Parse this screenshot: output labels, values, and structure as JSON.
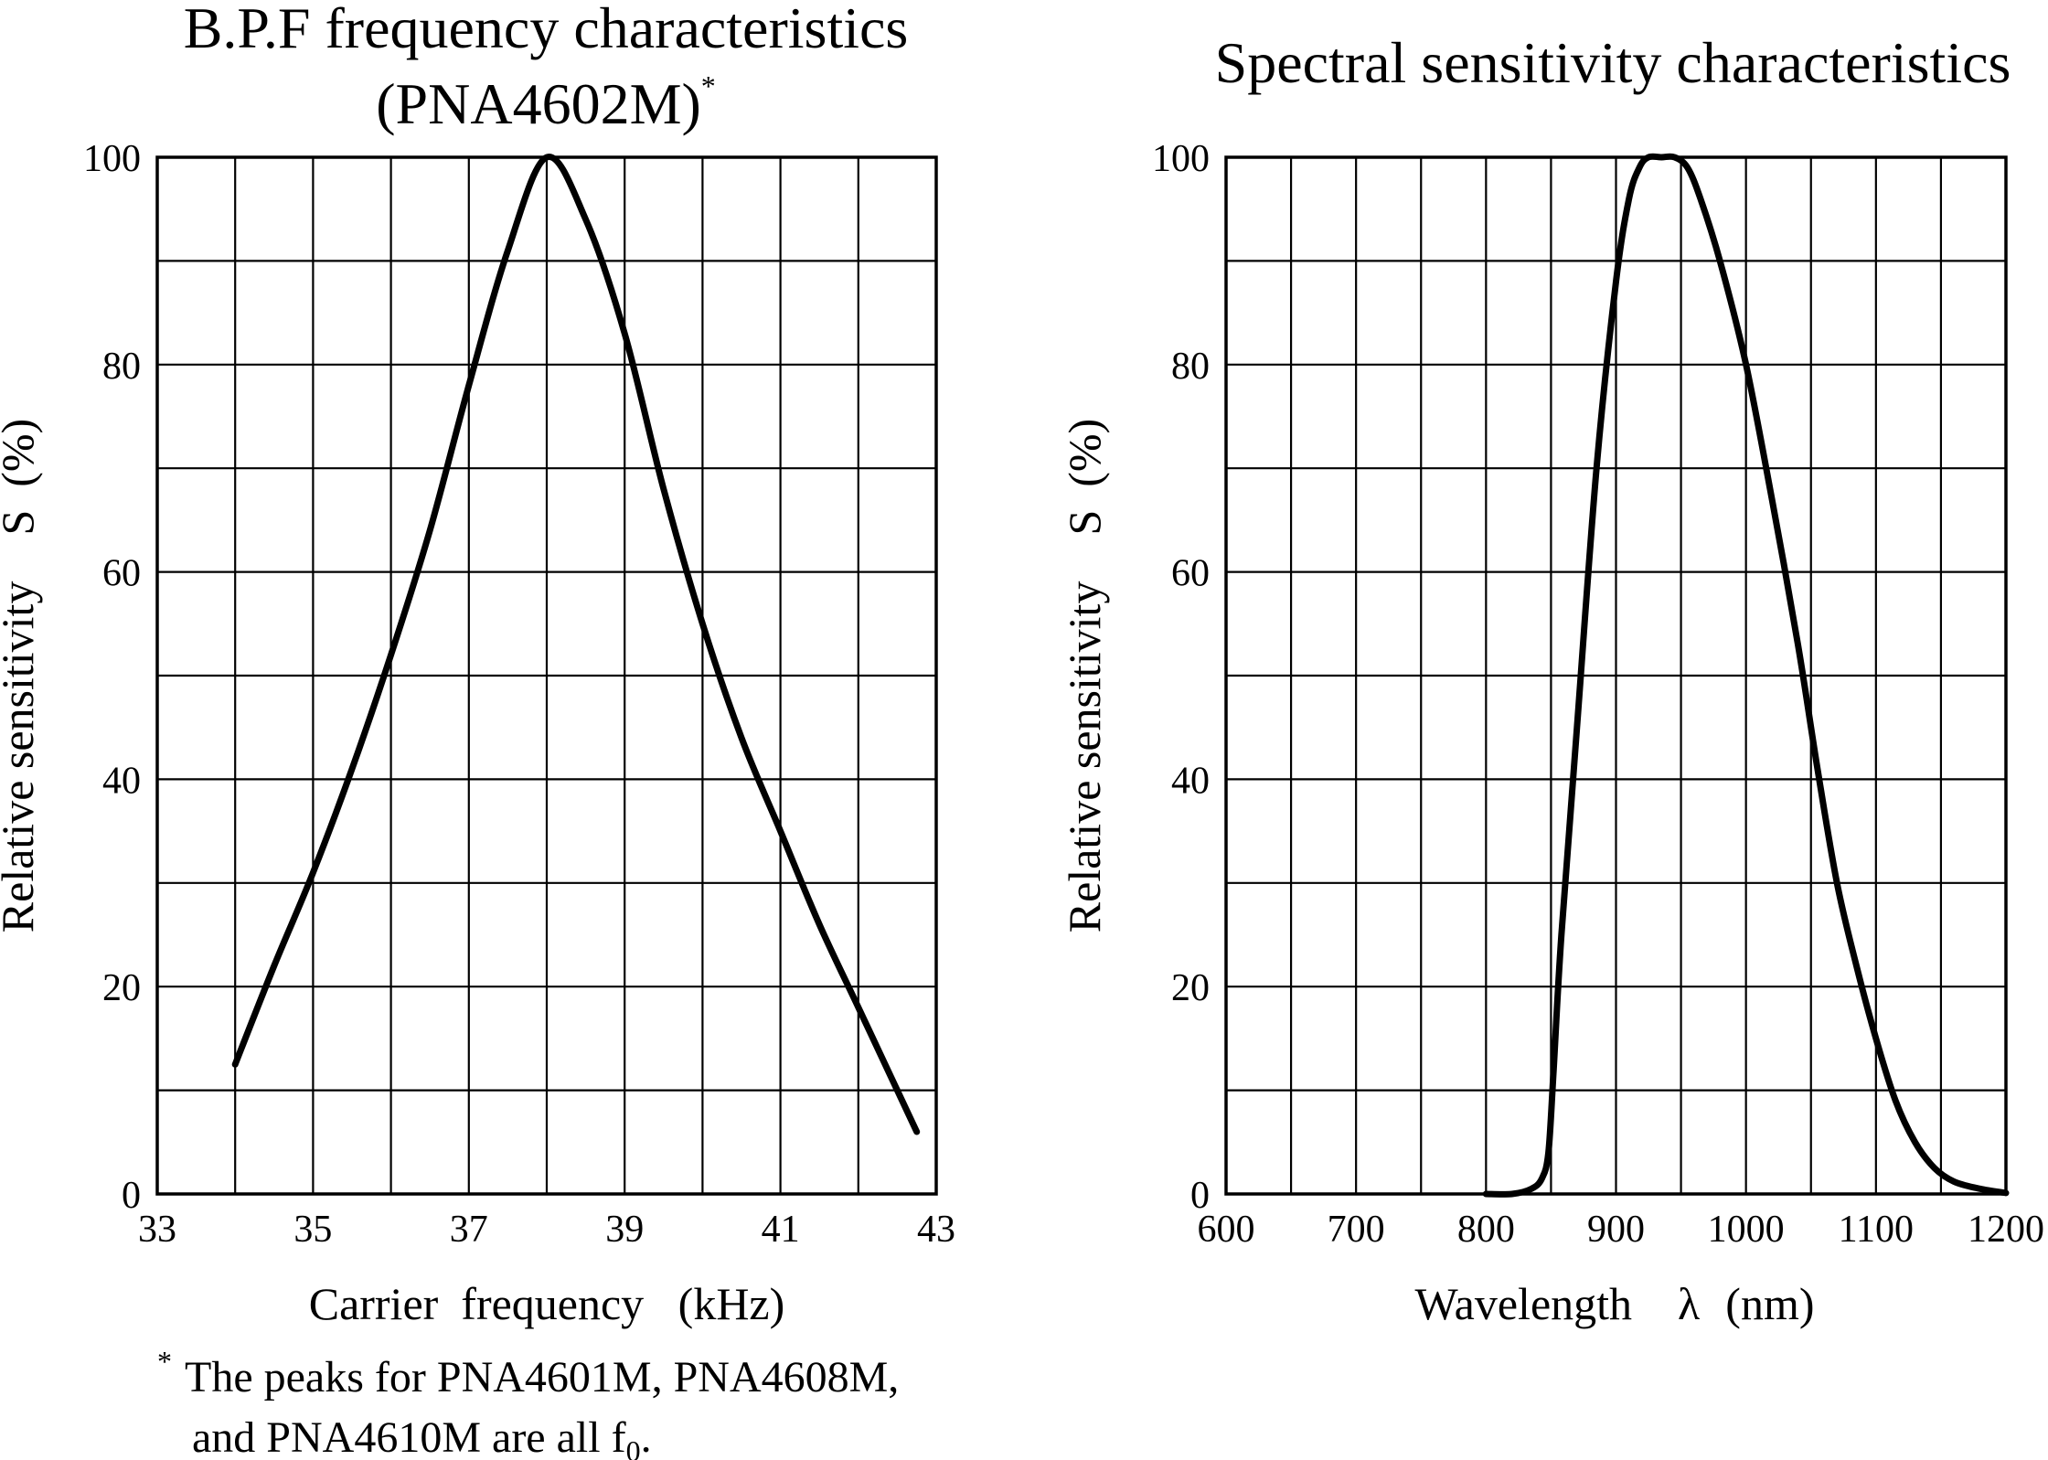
{
  "chart_data": [
    {
      "type": "line",
      "title": "B.P.F frequency characteristics",
      "subtitle": "(PNA4602M)",
      "subtitle_mark": "*",
      "xlabel": "Carrier  frequency   (kHz)",
      "ylabel": "Relative sensitivity    S  (%)",
      "xlim": [
        33,
        43
      ],
      "ylim": [
        0,
        100
      ],
      "x_major_ticks": [
        33,
        35,
        37,
        39,
        41,
        43
      ],
      "x_grid_step": 1,
      "y_major_ticks": [
        0,
        20,
        40,
        60,
        80,
        100
      ],
      "y_grid_step": 10,
      "grid": true,
      "series": [
        {
          "name": "PNA4602M",
          "x": [
            34.0,
            34.5,
            35.0,
            35.5,
            36.0,
            36.5,
            37.0,
            37.5,
            38.0,
            38.5,
            39.0,
            39.5,
            40.0,
            40.5,
            41.0,
            41.5,
            42.0,
            42.5,
            42.75
          ],
          "y": [
            12.5,
            22,
            31,
            41,
            52,
            64,
            78,
            91,
            100,
            94,
            83,
            68,
            55,
            44,
            35,
            26,
            18,
            10,
            6
          ]
        }
      ],
      "footnote_mark": "*",
      "footnote_line1": "The peaks for PNA4601M, PNA4608M,",
      "footnote_line2": "and PNA4610M are all f",
      "footnote_sub": "0",
      "footnote_end": "."
    },
    {
      "type": "line",
      "title": "Spectral sensitivity characteristics",
      "xlabel": "Wavelength",
      "xlabel_symbol": "λ",
      "xlabel_unit": "(nm)",
      "ylabel": "Relative sensitivity    S  (%)",
      "xlim": [
        600,
        1200
      ],
      "ylim": [
        0,
        100
      ],
      "x_major_ticks": [
        600,
        700,
        800,
        900,
        1000,
        1100,
        1200
      ],
      "x_grid_step": 50,
      "y_major_ticks": [
        0,
        20,
        40,
        60,
        80,
        100
      ],
      "y_grid_step": 10,
      "grid": true,
      "series": [
        {
          "name": "Spectral sensitivity",
          "x": [
            800,
            820,
            835,
            843,
            848,
            852,
            858,
            870,
            885,
            900,
            910,
            918,
            925,
            935,
            945,
            955,
            965,
            980,
            1000,
            1020,
            1040,
            1055,
            1070,
            1085,
            1100,
            1115,
            1130,
            1145,
            1160,
            1180,
            1200
          ],
          "y": [
            0,
            0,
            0.5,
            1.5,
            4,
            12,
            25,
            45,
            70,
            88,
            96,
            99,
            100,
            100,
            100,
            99,
            96,
            90,
            80,
            67,
            53,
            41,
            30,
            22,
            15,
            9,
            5,
            2.5,
            1.2,
            0.5,
            0.1
          ]
        }
      ]
    }
  ]
}
